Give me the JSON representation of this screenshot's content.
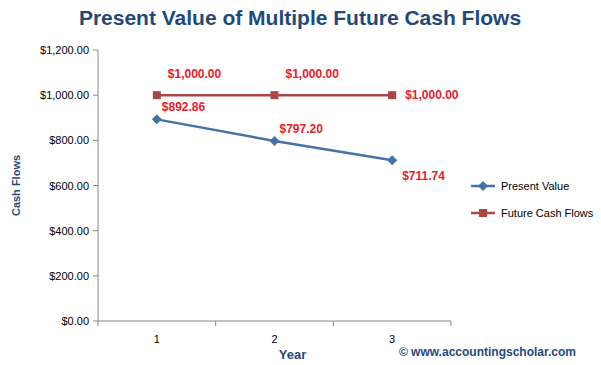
{
  "chart_data": {
    "type": "line",
    "title": "Present Value of Multiple Future Cash Flows",
    "x_label": "Year",
    "y_label": "Cash Flows",
    "annotations": [
      "© www.accountingscholar.com"
    ],
    "categories": [
      "1",
      "2",
      "3"
    ],
    "series": [
      {
        "name": "Present Value",
        "color": "#4572a7",
        "marker": "diamond",
        "line_style": "solid",
        "values": [
          892.86,
          797.2,
          711.74
        ],
        "value_labels": [
          "$892.86",
          "$797.20",
          "$711.74"
        ]
      },
      {
        "name": "Future Cash Flows",
        "color": "#aa4643",
        "marker": "square",
        "line_style": "solid",
        "values": [
          1000,
          1000,
          1000
        ],
        "value_labels": [
          "$1,000.00",
          "$1,000.00",
          "$1,000.00"
        ]
      }
    ],
    "ylim": [
      0,
      1200
    ],
    "yticks": [
      {
        "value": 0,
        "label": "$0.00"
      },
      {
        "value": 200,
        "label": "$200.00"
      },
      {
        "value": 400,
        "label": "$400.00"
      },
      {
        "value": 600,
        "label": "$600.00"
      },
      {
        "value": 800,
        "label": "$800.00"
      },
      {
        "value": 1000,
        "label": "$1,000.00"
      },
      {
        "value": 1200,
        "label": "$1,200.00"
      }
    ],
    "grid": false,
    "legend": "right",
    "data_labels": true
  }
}
